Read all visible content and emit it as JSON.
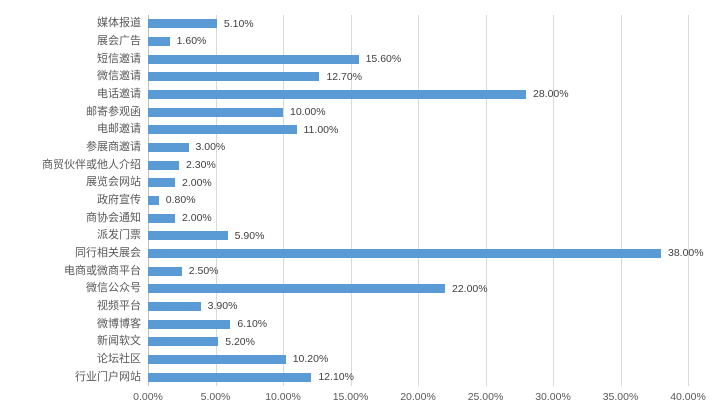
{
  "chart_data": {
    "type": "bar",
    "orientation": "horizontal",
    "title": "",
    "xlabel": "",
    "ylabel": "",
    "grid": true,
    "legend": false,
    "xlim": [
      0,
      40
    ],
    "categories": [
      "媒体报道",
      "展会广告",
      "短信邀请",
      "微信邀请",
      "电话邀请",
      "邮寄参观函",
      "电邮邀请",
      "参展商邀请",
      "商贸伙伴或他人介绍",
      "展览会网站",
      "政府宣传",
      "商协会通知",
      "派发门票",
      "同行相关展会",
      "电商或微商平台",
      "微信公众号",
      "视频平台",
      "微博博客",
      "新闻软文",
      "论坛社区",
      "行业门户网站"
    ],
    "values": [
      5.1,
      1.6,
      15.6,
      12.7,
      28.0,
      10.0,
      11.0,
      3.0,
      2.3,
      2.0,
      0.8,
      2.0,
      5.9,
      38.0,
      2.5,
      22.0,
      3.9,
      6.1,
      5.2,
      10.2,
      12.1
    ],
    "value_labels": [
      "5.10%",
      "1.60%",
      "15.60%",
      "12.70%",
      "28.00%",
      "10.00%",
      "11.00%",
      "3.00%",
      "2.30%",
      "2.00%",
      "0.80%",
      "2.00%",
      "5.90%",
      "38.00%",
      "2.50%",
      "22.00%",
      "3.90%",
      "6.10%",
      "5.20%",
      "10.20%",
      "12.10%"
    ],
    "x_ticks": [
      "0.00%",
      "5.00%",
      "10.00%",
      "15.00%",
      "20.00%",
      "25.00%",
      "30.00%",
      "35.00%",
      "40.00%"
    ],
    "bar_color": "#5B9BD5",
    "gridline_color": "#D9D9D9",
    "axis_line_color": "#BFBFBF",
    "text_color": "#595959",
    "value_label_color": "#404040"
  }
}
